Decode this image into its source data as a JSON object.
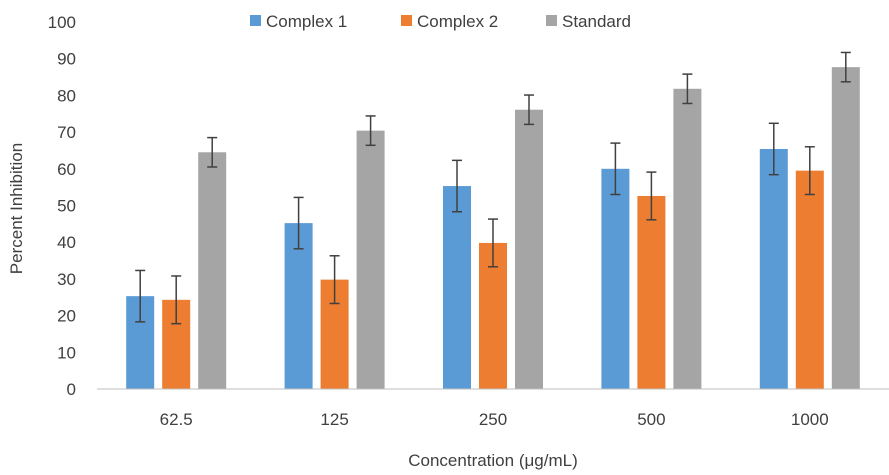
{
  "chart_data": {
    "type": "bar",
    "title": "",
    "xlabel": "Concentration (μg/mL)",
    "ylabel": "Percent Inhibition",
    "categories": [
      "62.5",
      "125",
      "250",
      "500",
      "1000"
    ],
    "ylim": [
      0,
      100
    ],
    "yticks": [
      0,
      10,
      20,
      30,
      40,
      50,
      60,
      70,
      80,
      90,
      100
    ],
    "grid": false,
    "legend_position": "top",
    "series": [
      {
        "name": "Complex 1",
        "color": "#5B9BD5",
        "values": [
          25.3,
          45.2,
          55.3,
          60.0,
          65.4
        ],
        "errors": [
          7.0,
          7.0,
          7.0,
          7.0,
          7.0
        ]
      },
      {
        "name": "Complex 2",
        "color": "#ED7D31",
        "values": [
          24.3,
          29.8,
          39.8,
          52.6,
          59.5
        ],
        "errors": [
          6.5,
          6.5,
          6.5,
          6.5,
          6.5
        ]
      },
      {
        "name": "Standard",
        "color": "#A5A5A5",
        "values": [
          64.5,
          70.4,
          76.1,
          81.8,
          87.7
        ],
        "errors": [
          4.0,
          4.0,
          4.0,
          4.0,
          4.0
        ]
      }
    ]
  }
}
